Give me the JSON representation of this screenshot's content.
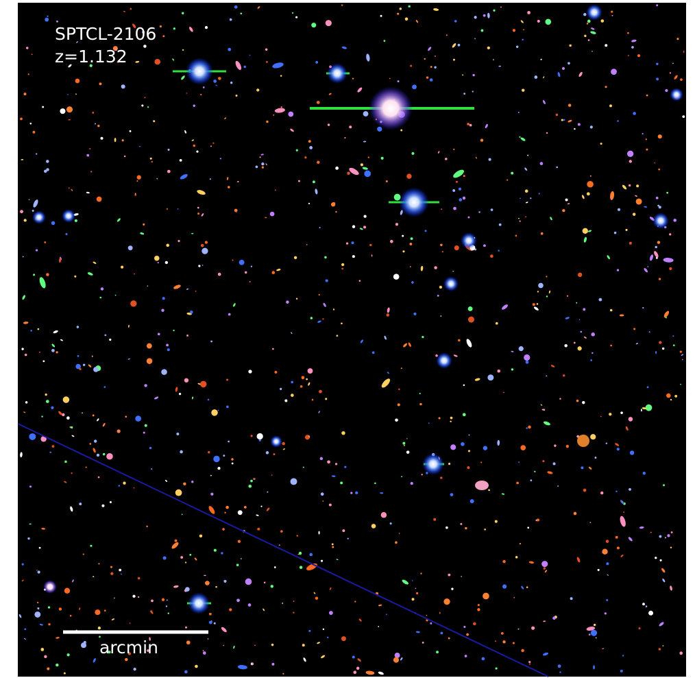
{
  "labels": {
    "cluster": "SPTCL-2106",
    "redshift": "z=1.132",
    "scale_bar": "arcmin"
  }
}
